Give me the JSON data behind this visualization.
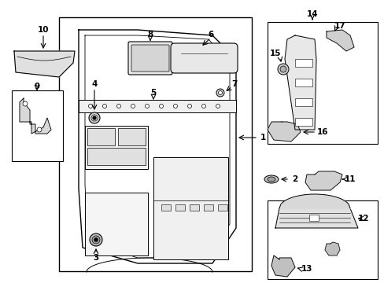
{
  "background_color": "#ffffff",
  "fig_width": 4.89,
  "fig_height": 3.6,
  "dpi": 100,
  "line_color": "#000000"
}
